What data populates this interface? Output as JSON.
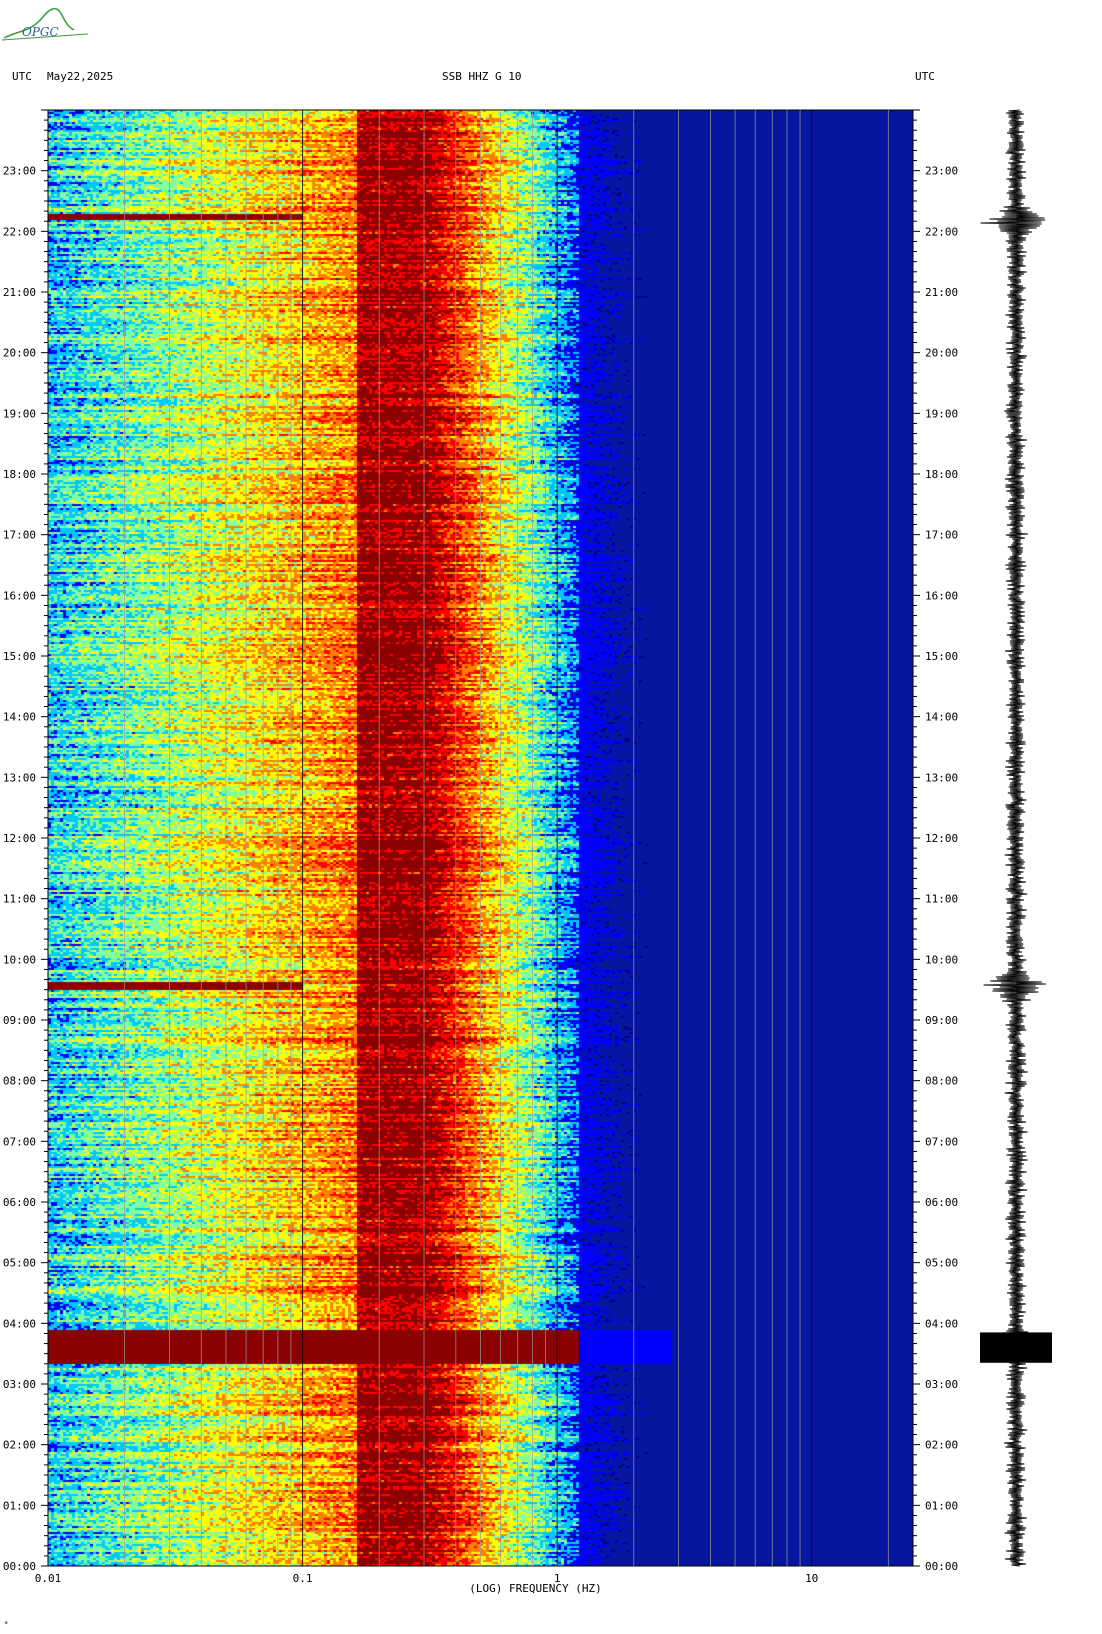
{
  "logo": {
    "text": "OPGC"
  },
  "header": {
    "left_timezone": "UTC",
    "date": "May22,2025",
    "title": "SSB HHZ G 10",
    "right_timezone": "UTC"
  },
  "chart_data": {
    "type": "heatmap",
    "title": "SSB HHZ G 10",
    "xlabel": "(LOG) FREQUENCY (HZ)",
    "ylabel": "",
    "x_scale": "log",
    "xlim": [
      0.01,
      25
    ],
    "x_tick_labels": [
      "0.01",
      "0.1",
      "1",
      "10"
    ],
    "x_tick_values": [
      0.01,
      0.1,
      1,
      10
    ],
    "ylim_hours": [
      0,
      24
    ],
    "y_tick_labels": [
      "00:00",
      "01:00",
      "02:00",
      "03:00",
      "04:00",
      "05:00",
      "06:00",
      "07:00",
      "08:00",
      "09:00",
      "10:00",
      "11:00",
      "12:00",
      "13:00",
      "14:00",
      "15:00",
      "16:00",
      "17:00",
      "18:00",
      "19:00",
      "20:00",
      "21:00",
      "22:00",
      "23:00"
    ],
    "y_tick_values": [
      0,
      1,
      2,
      3,
      4,
      5,
      6,
      7,
      8,
      9,
      10,
      11,
      12,
      13,
      14,
      15,
      16,
      17,
      18,
      19,
      20,
      21,
      22,
      23
    ],
    "colormap": [
      "#00008f",
      "#0000ff",
      "#00c8ff",
      "#7fffa0",
      "#ffff00",
      "#ff8000",
      "#ff0000",
      "#8b0000"
    ],
    "background_color": "#07169e",
    "microseism_peak_hz": 0.2,
    "events": [
      {
        "label": "",
        "start_hour": 3.35,
        "end_hour": 3.9,
        "max_freq_hz": 2.8
      },
      {
        "label": "",
        "start_hour": 9.5,
        "end_hour": 9.65,
        "max_freq_hz": 0.1
      },
      {
        "label": "",
        "start_hour": 22.2,
        "end_hour": 22.3,
        "max_freq_hz": 0.1
      }
    ],
    "seismogram": {
      "type": "trace",
      "large_amplitude_hours": [
        3.6,
        9.55,
        22.15
      ]
    }
  },
  "footer": {
    "corner_mark": "*"
  }
}
